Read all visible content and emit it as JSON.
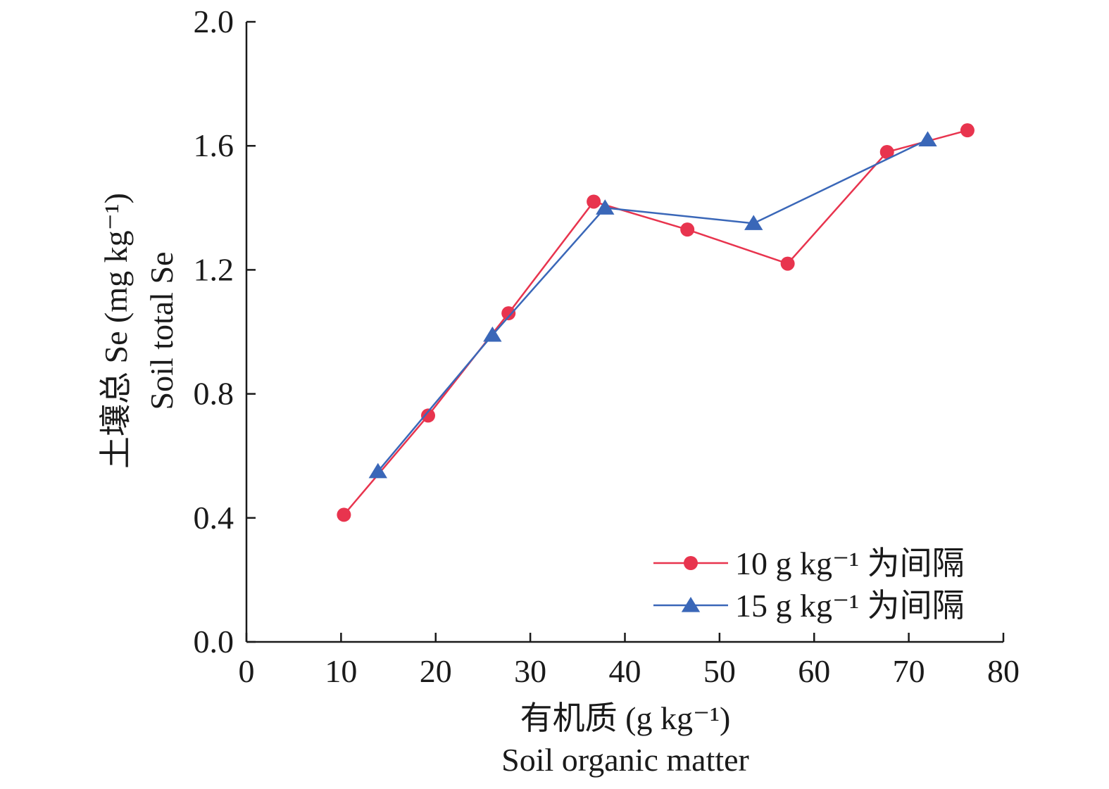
{
  "chart_data": {
    "type": "line",
    "xlabel": "有机质 (g kg⁻¹)",
    "xlabel_en": "Soil organic matter",
    "ylabel": "土壤总 Se (mg kg⁻¹)",
    "ylabel_en": "Soil total Se",
    "xlim": [
      0,
      80
    ],
    "ylim": [
      0.0,
      2.0
    ],
    "xticks": [
      "0",
      "10",
      "20",
      "30",
      "40",
      "50",
      "60",
      "70",
      "80"
    ],
    "yticks": [
      "0.0",
      "0.4",
      "0.8",
      "1.2",
      "1.6",
      "2.0"
    ],
    "grid": false,
    "legend_position": "bottom-right",
    "series": [
      {
        "name": "10 g kg⁻¹ 为间隔",
        "marker": "circle",
        "color": "#e8344e",
        "x": [
          10.3,
          19.2,
          27.7,
          36.7,
          46.6,
          57.2,
          67.7,
          76.2
        ],
        "y": [
          0.41,
          0.73,
          1.06,
          1.42,
          1.33,
          1.22,
          1.58,
          1.65
        ]
      },
      {
        "name": "15 g kg⁻¹ 为间隔",
        "marker": "triangle",
        "color": "#3a67b8",
        "x": [
          13.9,
          26.0,
          37.9,
          53.6,
          72.0
        ],
        "y": [
          0.55,
          0.99,
          1.4,
          1.35,
          1.62
        ]
      }
    ]
  }
}
